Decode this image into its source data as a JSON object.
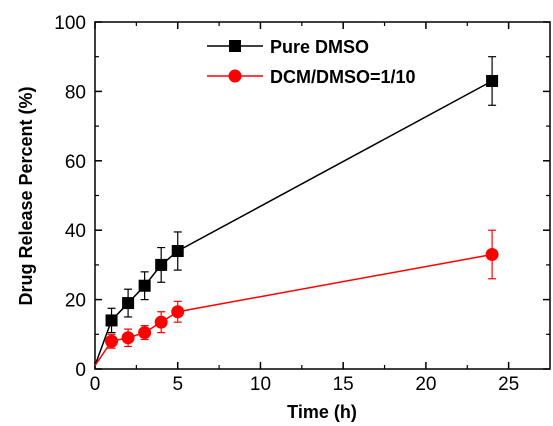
{
  "chart_data": {
    "type": "line",
    "title": "",
    "xlabel": "Time (h)",
    "ylabel": "Drug Release Percent (%)",
    "xlim": [
      0,
      27.5
    ],
    "ylim": [
      0,
      100
    ],
    "xticks": [
      0,
      5,
      10,
      15,
      20,
      25
    ],
    "yticks": [
      0,
      20,
      40,
      60,
      80,
      100
    ],
    "grid": false,
    "legend_position": "top-center",
    "series": [
      {
        "name": "Pure DMSO",
        "color": "#000000",
        "marker": "square",
        "x": [
          0,
          1,
          2,
          3,
          4,
          5,
          24
        ],
        "y": [
          1,
          14,
          19,
          24,
          30,
          34,
          83
        ],
        "error": [
          0,
          3.5,
          4,
          4,
          5,
          5.5,
          7
        ]
      },
      {
        "name": "DCM/DMSO=1/10",
        "color": "#ff0000",
        "marker": "circle",
        "x": [
          0,
          1,
          2,
          3,
          4,
          5,
          24
        ],
        "y": [
          1,
          8,
          9,
          10.5,
          13.5,
          16.5,
          33
        ],
        "error": [
          0,
          2,
          2.5,
          2,
          3,
          3,
          7
        ]
      }
    ]
  }
}
